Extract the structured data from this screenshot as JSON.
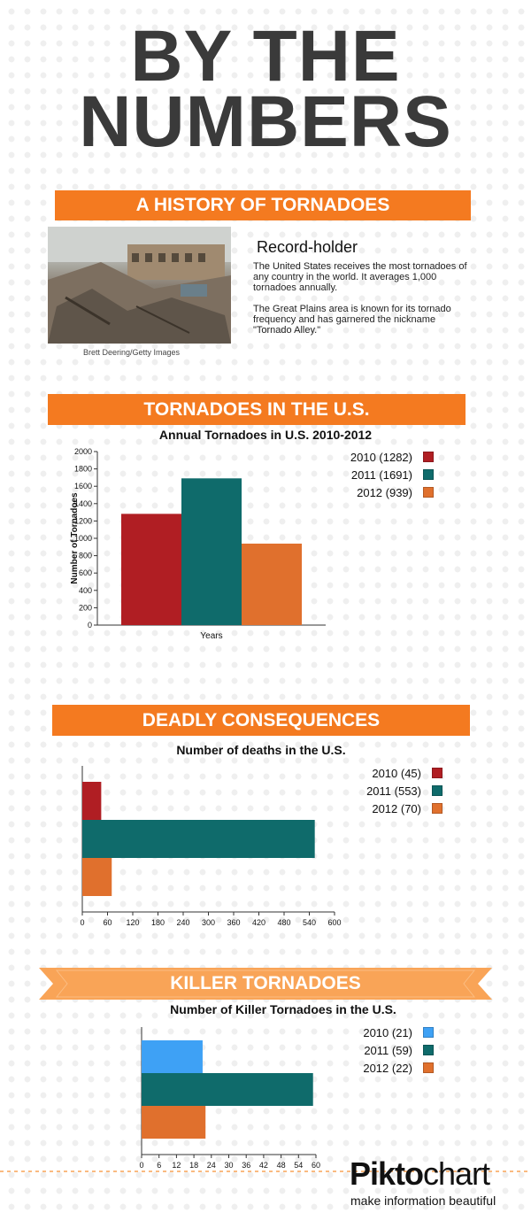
{
  "header": {
    "title_line1": "BY THE",
    "title_line2": "NUMBERS"
  },
  "sections": {
    "history": {
      "banner": "A HISTORY OF TORNADOES",
      "photo_caption": "Brett Deering/Getty Images",
      "heading": "Record-holder",
      "paragraph1": "The United States receives the most tornadoes of any country in the world. It averages 1,000 tornadoes annually.",
      "paragraph2": "The Great Plains area is known for its tornado frequency and has garnered the nickname \"Tornado Alley.\""
    },
    "us": {
      "banner": "TORNADOES IN THE  U.S."
    },
    "deadly": {
      "banner": "DEADLY CONSEQUENCES"
    },
    "killer": {
      "banner": "KILLER TORNADOES"
    }
  },
  "colors": {
    "orange": "#f47a20",
    "light_orange": "#f9a457",
    "red": "#b01e23",
    "teal": "#0f6b6b",
    "burnt": "#e0702d",
    "blue": "#3ea1f5"
  },
  "chart_data": [
    {
      "id": "annual",
      "type": "bar",
      "title": "Annual Tornadoes in U.S. 2010-2012",
      "xlabel": "Years",
      "ylabel": "Number of Tornadoes",
      "ylim": [
        0,
        2000
      ],
      "yticks": [
        "0",
        "200",
        "400",
        "600",
        "800",
        "1000",
        "1200",
        "1400",
        "1600",
        "1800",
        "2000"
      ],
      "series": [
        {
          "name": "2010 (1282)",
          "value": 1282,
          "color": "#b01e23"
        },
        {
          "name": "2011 (1691)",
          "value": 1691,
          "color": "#0f6b6b"
        },
        {
          "name": "2012 (939)",
          "value": 939,
          "color": "#e0702d"
        }
      ],
      "legend": "top-right"
    },
    {
      "id": "deaths",
      "type": "bar",
      "orientation": "horizontal",
      "title": "Number of deaths in the U.S.",
      "xlim": [
        0,
        600
      ],
      "xticks": [
        "0",
        "60",
        "120",
        "180",
        "240",
        "300",
        "360",
        "420",
        "480",
        "540",
        "600"
      ],
      "series": [
        {
          "name": "2010 (45)",
          "value": 45,
          "color": "#b01e23"
        },
        {
          "name": "2011 (553)",
          "value": 553,
          "color": "#0f6b6b"
        },
        {
          "name": "2012 (70)",
          "value": 70,
          "color": "#e0702d"
        }
      ],
      "legend": "top-right"
    },
    {
      "id": "killer",
      "type": "bar",
      "orientation": "horizontal",
      "title": "Number of Killer Tornadoes in the U.S.",
      "xlim": [
        0,
        60
      ],
      "xticks": [
        "0",
        "6",
        "12",
        "18",
        "24",
        "30",
        "36",
        "42",
        "48",
        "54",
        "60"
      ],
      "series": [
        {
          "name": "2010 (21)",
          "value": 21,
          "color": "#3ea1f5"
        },
        {
          "name": "2011 (59)",
          "value": 59,
          "color": "#0f6b6b"
        },
        {
          "name": "2012 (22)",
          "value": 22,
          "color": "#e0702d"
        }
      ],
      "legend": "top-right"
    }
  ],
  "footer": {
    "brand_part1": "Pikto",
    "brand_part2": "chart",
    "tagline": "make information beautiful"
  }
}
